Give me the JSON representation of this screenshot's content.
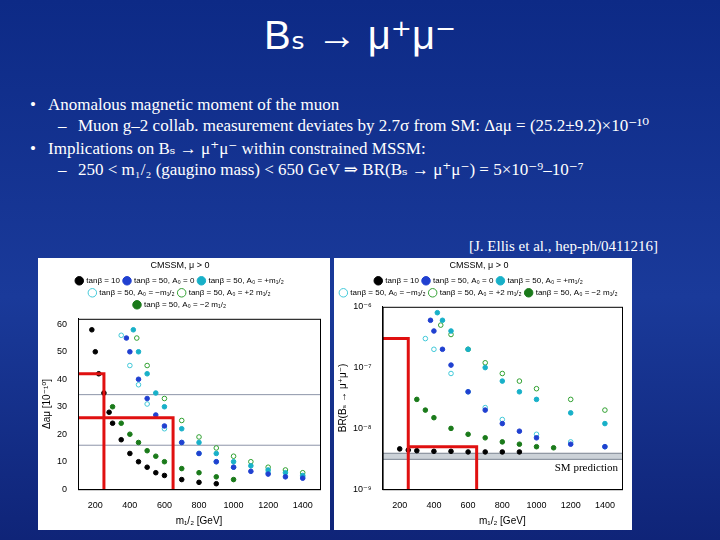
{
  "title": "Bₛ → μ⁺μ⁻",
  "bullets": [
    {
      "text": "Anomalous magnetic moment of the muon",
      "sub": [
        "Muon g–2 collab. measurement deviates by 2.7σ from SM: Δaμ = (25.2±9.2)×10⁻¹⁰"
      ]
    },
    {
      "text": "Implications on Bₛ → μ⁺μ⁻ within constrained MSSM:",
      "sub": [
        "250 < m₁/₂ (gaugino mass) < 650 GeV ⇒ BR(Bₛ → μ⁺μ⁻) = 5×10⁻⁹–10⁻⁷"
      ]
    }
  ],
  "citation": "[J. Ellis et al., hep-ph/0411216]",
  "chart_data": [
    {
      "type": "scatter",
      "x_label": "m₁/₂ [GeV]",
      "y_label": "Δaμ [10⁻¹⁰]",
      "xlim": [
        100,
        1500
      ],
      "xticks": [
        200,
        400,
        600,
        800,
        1000,
        1200,
        1400
      ],
      "ylim": [
        0,
        62
      ],
      "yticks": [
        0,
        10,
        20,
        30,
        40,
        50,
        60
      ],
      "grid": false,
      "legend": "top",
      "legend_title": "CMSSM, μ > 0",
      "reference_lines": [
        16,
        34.4
      ],
      "red_lines": [
        [
          [
            100,
            42
          ],
          [
            250,
            42
          ],
          [
            250,
            0
          ]
        ],
        [
          [
            100,
            26
          ],
          [
            650,
            26
          ],
          [
            650,
            0
          ]
        ]
      ],
      "series": [
        {
          "name": "tanβ = 10",
          "color": "#000000",
          "marker": "circle",
          "x": [
            180,
            200,
            220,
            250,
            280,
            300,
            350,
            400,
            450,
            500,
            550,
            600,
            700,
            800,
            900
          ],
          "values": [
            58,
            50,
            42,
            35,
            28,
            24,
            18,
            13,
            10,
            8,
            6,
            5,
            3.5,
            2.5,
            2
          ]
        },
        {
          "name": "tanβ = 50, A₀ = 0",
          "color": "#2040d0",
          "marker": "circle",
          "x": [
            380,
            400,
            450,
            500,
            550,
            600,
            700,
            800,
            900,
            1000,
            1100,
            1200,
            1300,
            1400
          ],
          "values": [
            55,
            50,
            40,
            33,
            27,
            23,
            17,
            13,
            10,
            8,
            6.5,
            5.5,
            4.5,
            4
          ]
        },
        {
          "name": "tanβ = 50, A₀ = +m₁/₂",
          "color": "#18b0c8",
          "marker": "circle",
          "x": [
            420,
            450,
            500,
            550,
            600,
            700,
            800,
            900,
            1000,
            1100,
            1200,
            1300,
            1400
          ],
          "values": [
            58,
            50,
            42,
            35,
            30,
            22,
            17,
            13,
            10,
            8.5,
            7,
            6,
            5
          ]
        },
        {
          "name": "tanβ = 50, A₀ = −m₁/₂",
          "color": "#40c8d8",
          "marker": "open_circle",
          "x": [
            350,
            400,
            450,
            500,
            600,
            700,
            800,
            900,
            1000,
            1200,
            1400
          ],
          "values": [
            56,
            45,
            38,
            31,
            22,
            17,
            13,
            10,
            8,
            6,
            4.5
          ]
        },
        {
          "name": "tanβ = 50, A₀ = +2 m₁/₂",
          "color": "#30a030",
          "marker": "open_circle",
          "x": [
            440,
            500,
            600,
            700,
            800,
            900,
            1000,
            1100,
            1200,
            1300,
            1400
          ],
          "values": [
            55,
            45,
            33,
            25,
            19,
            15,
            12,
            10,
            8,
            7,
            6
          ]
        },
        {
          "name": "tanβ = 50, A₀ = −2 m₁/₂",
          "color": "#1a7a1a",
          "marker": "circle",
          "x": [
            300,
            350,
            400,
            450,
            500,
            550,
            600,
            700,
            800,
            900,
            1000
          ],
          "values": [
            30,
            24,
            20,
            17,
            14,
            12,
            10,
            7.5,
            6,
            4.5,
            3.5
          ]
        }
      ]
    },
    {
      "type": "scatter",
      "x_label": "m₁/₂ [GeV]",
      "y_label": "BR(Bₛ → μ⁺μ⁻)",
      "log": "y",
      "xlim": [
        100,
        1500
      ],
      "xticks": [
        200,
        400,
        600,
        800,
        1000,
        1200,
        1400
      ],
      "ylim": [
        1e-09,
        1e-06
      ],
      "yticks": [
        {
          "value": 1e-09,
          "label": "10⁻⁹"
        },
        {
          "value": 1e-08,
          "label": "10⁻⁸"
        },
        {
          "value": 1e-07,
          "label": "10⁻⁷"
        },
        {
          "value": 1e-06,
          "label": "10⁻⁶"
        }
      ],
      "grid": false,
      "legend": "top",
      "legend_title": "CMSSM, μ > 0",
      "band": [
        3.1e-09,
        3.9e-09
      ],
      "band_label": "SM prediction",
      "red_lines": [
        [
          [
            100,
            3e-07
          ],
          [
            250,
            3e-07
          ],
          [
            250,
            1e-09
          ]
        ],
        [
          [
            250,
            5e-09
          ],
          [
            650,
            5e-09
          ],
          [
            650,
            1e-09
          ]
        ]
      ],
      "series": [
        {
          "name": "tanβ = 10",
          "color": "#000000",
          "marker": "circle",
          "x": [
            200,
            250,
            300,
            400,
            500,
            600,
            700,
            800,
            900
          ],
          "values": [
            4.6e-09,
            4.4e-09,
            4.3e-09,
            4.2e-09,
            4.2e-09,
            4.1e-09,
            4.1e-09,
            4.1e-09,
            4.1e-09
          ]
        },
        {
          "name": "tanβ = 50, A₀ = 0",
          "color": "#2040d0",
          "marker": "circle",
          "x": [
            380,
            400,
            450,
            500,
            600,
            700,
            800,
            900,
            1000,
            1200,
            1400
          ],
          "values": [
            6e-07,
            4e-07,
            2e-07,
            1.1e-07,
            4e-08,
            2e-08,
            1.2e-08,
            9e-09,
            7e-09,
            5.5e-09,
            5e-09
          ]
        },
        {
          "name": "tanβ = 50, A₀ = +m₁/₂",
          "color": "#18b0c8",
          "marker": "circle",
          "x": [
            420,
            450,
            500,
            600,
            700,
            800,
            900,
            1000,
            1200,
            1400
          ],
          "values": [
            8e-07,
            6e-07,
            4e-07,
            2e-07,
            1e-07,
            6e-08,
            4e-08,
            3e-08,
            1.8e-08,
            1.2e-08
          ]
        },
        {
          "name": "tanβ = 50, A₀ = −m₁/₂",
          "color": "#40c8d8",
          "marker": "open_circle",
          "x": [
            350,
            400,
            500,
            600,
            700,
            800,
            1000,
            1200,
            1400
          ],
          "values": [
            3e-07,
            2e-07,
            8e-08,
            4e-08,
            2.2e-08,
            1.4e-08,
            8e-09,
            6e-09,
            5e-09
          ]
        },
        {
          "name": "tanβ = 50, A₀ = +2 m₁/₂",
          "color": "#30a030",
          "marker": "open_circle",
          "x": [
            440,
            500,
            600,
            700,
            800,
            900,
            1000,
            1200,
            1400
          ],
          "values": [
            5e-07,
            3.5e-07,
            2e-07,
            1.2e-07,
            8e-08,
            6e-08,
            4.5e-08,
            3e-08,
            2e-08
          ]
        },
        {
          "name": "tanβ = 50, A₀ = −2 m₁/₂",
          "color": "#1a7a1a",
          "marker": "circle",
          "x": [
            300,
            350,
            400,
            500,
            600,
            700,
            800,
            900,
            1000,
            1100
          ],
          "values": [
            3e-08,
            2e-08,
            1.5e-08,
            1e-08,
            8e-09,
            7e-09,
            6e-09,
            5.5e-09,
            5e-09,
            4.8e-09
          ]
        }
      ]
    }
  ]
}
